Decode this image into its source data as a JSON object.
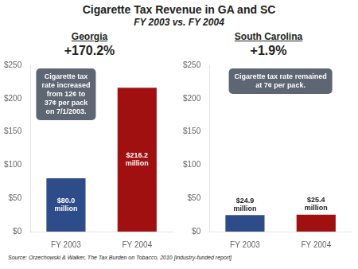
{
  "title": "Cigarette Tax Revenue in GA and SC",
  "subtitle": "FY 2003 vs. FY 2004",
  "annotations": [
    "Source:  Orzechowski & Walker,  The Tax Burden on Tobacco, 2010 [industry-funded report]"
  ],
  "chart_data": [
    {
      "type": "bar",
      "title": "Georgia",
      "subtitle": "+170.2%",
      "categories": [
        "FY 2003",
        "FY 2004"
      ],
      "values": [
        80.0,
        216.2
      ],
      "value_labels": [
        "$80.0\nmillion",
        "$216.2\nmillion"
      ],
      "data_labels": true,
      "colors": [
        "#2E4B8A",
        "#A01010"
      ],
      "ylim": [
        0,
        250
      ],
      "yticks": [
        {
          "value": 0,
          "label": "$0"
        },
        {
          "value": 50,
          "label": "$50"
        },
        {
          "value": 100,
          "label": "$100"
        },
        {
          "value": 150,
          "label": "$150"
        },
        {
          "value": 200,
          "label": "$200"
        },
        {
          "value": 250,
          "label": "$250"
        }
      ],
      "grid": false,
      "annotations": [
        "Cigarette tax\nrate increased\nfrom 12¢ to\n37¢ per pack\non 7/1/2003."
      ]
    },
    {
      "type": "bar",
      "title": "South Carolina",
      "subtitle": "+1.9%",
      "categories": [
        "FY 2003",
        "FY 2004"
      ],
      "values": [
        24.9,
        25.4
      ],
      "value_labels": [
        "$24.9\nmillion",
        "$25.4\nmillion"
      ],
      "data_labels": true,
      "colors": [
        "#2E4B8A",
        "#A01010"
      ],
      "ylim": [
        0,
        250
      ],
      "yticks": [
        {
          "value": 0,
          "label": "$0"
        },
        {
          "value": 50,
          "label": "$50"
        },
        {
          "value": 100,
          "label": "$100"
        },
        {
          "value": 150,
          "label": "$150"
        },
        {
          "value": 200,
          "label": "$200"
        },
        {
          "value": 250,
          "label": "$250"
        }
      ],
      "grid": false,
      "annotations": [
        "Cigarette tax rate remained\nat 7¢ per pack."
      ]
    }
  ]
}
